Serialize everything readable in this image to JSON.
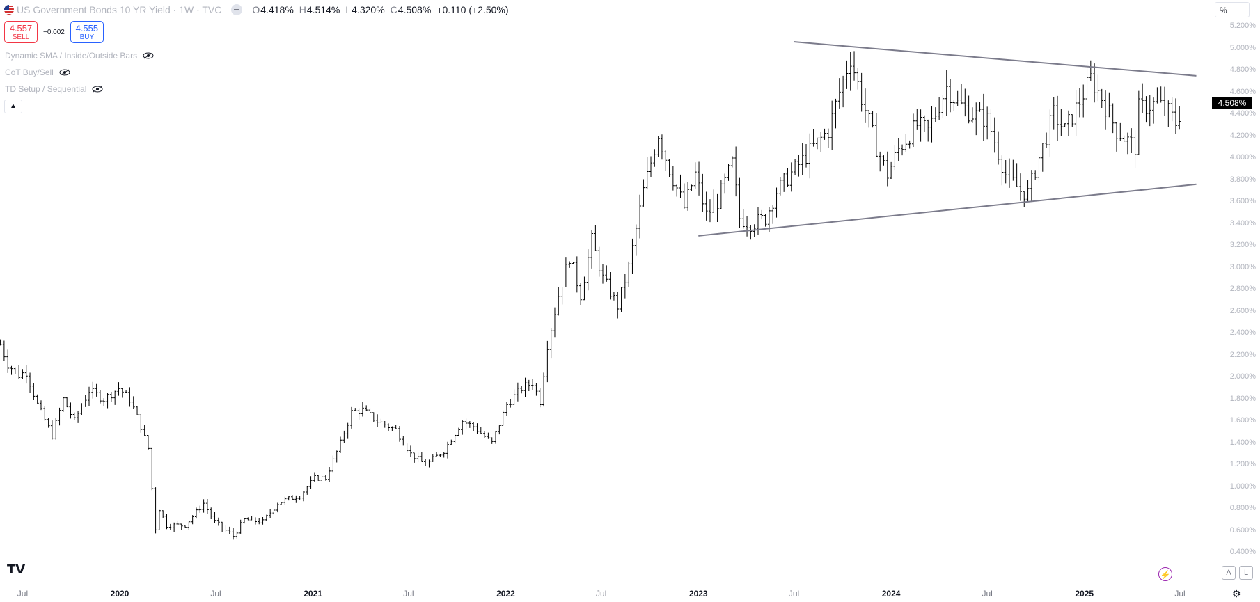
{
  "header": {
    "title": "US Government Bonds 10 YR Yield · 1W · TVC",
    "o_label": "O",
    "o_value": "4.418%",
    "h_label": "H",
    "h_value": "4.514%",
    "l_label": "L",
    "l_value": "4.320%",
    "c_label": "C",
    "c_value": "4.508%",
    "change": "+0.110 (+2.50%)"
  },
  "trade": {
    "sell_price": "4.557",
    "sell_label": "SELL",
    "spread": "−0.002",
    "buy_price": "4.555",
    "buy_label": "BUY"
  },
  "indicators": [
    {
      "label": "Dynamic SMA / Inside/Outside Bars"
    },
    {
      "label": "CoT Buy/Sell"
    },
    {
      "label": "TD Setup / Sequential"
    }
  ],
  "collapse_icon": "chevron-up-icon",
  "axis_unit": "%",
  "last_price_tag": "4.508%",
  "colors": {
    "bars": "#000000",
    "trendline": "#7b7b8b",
    "sell": "#f23645",
    "buy": "#2962ff"
  },
  "chart_data": {
    "type": "ohlc",
    "title": "US Government Bonds 10 YR Yield",
    "ylim": [
      0.3,
      5.3
    ],
    "y_ticks": [
      "0.400%",
      "0.600%",
      "0.800%",
      "1.000%",
      "1.200%",
      "1.400%",
      "1.600%",
      "1.800%",
      "2.000%",
      "2.200%",
      "2.400%",
      "2.600%",
      "2.800%",
      "3.000%",
      "3.200%",
      "3.400%",
      "3.600%",
      "3.800%",
      "4.000%",
      "4.200%",
      "4.400%",
      "4.600%",
      "4.800%",
      "5.000%",
      "5.200%"
    ],
    "x_labels": [
      {
        "label": "Jul",
        "date": "2019-07-01",
        "year": false
      },
      {
        "label": "2020",
        "date": "2020-01-01",
        "year": true
      },
      {
        "label": "Jul",
        "date": "2020-07-01",
        "year": false
      },
      {
        "label": "2021",
        "date": "2021-01-01",
        "year": true
      },
      {
        "label": "Jul",
        "date": "2021-07-01",
        "year": false
      },
      {
        "label": "2022",
        "date": "2022-01-01",
        "year": true
      },
      {
        "label": "Jul",
        "date": "2022-07-01",
        "year": false
      },
      {
        "label": "2023",
        "date": "2023-01-01",
        "year": true
      },
      {
        "label": "Jul",
        "date": "2023-07-01",
        "year": false
      },
      {
        "label": "2024",
        "date": "2024-01-01",
        "year": true
      },
      {
        "label": "Jul",
        "date": "2024-07-01",
        "year": false
      },
      {
        "label": "2025",
        "date": "2025-01-01",
        "year": true
      },
      {
        "label": "Jul",
        "date": "2025-07-01",
        "year": false
      }
    ],
    "price_path": [
      [
        "2019-05-20",
        2.3
      ],
      [
        "2019-06-03",
        2.12
      ],
      [
        "2019-06-24",
        2.02
      ],
      [
        "2019-07-08",
        2.05
      ],
      [
        "2019-07-29",
        1.75
      ],
      [
        "2019-08-26",
        1.47
      ],
      [
        "2019-09-16",
        1.8
      ],
      [
        "2019-10-07",
        1.6
      ],
      [
        "2019-11-04",
        1.88
      ],
      [
        "2019-12-02",
        1.8
      ],
      [
        "2019-12-30",
        1.9
      ],
      [
        "2020-01-20",
        1.8
      ],
      [
        "2020-02-10",
        1.55
      ],
      [
        "2020-02-24",
        1.35
      ],
      [
        "2020-03-09",
        0.62
      ],
      [
        "2020-03-16",
        0.8
      ],
      [
        "2020-03-30",
        0.65
      ],
      [
        "2020-05-04",
        0.65
      ],
      [
        "2020-06-08",
        0.85
      ],
      [
        "2020-06-29",
        0.68
      ],
      [
        "2020-08-03",
        0.55
      ],
      [
        "2020-08-24",
        0.7
      ],
      [
        "2020-09-28",
        0.68
      ],
      [
        "2020-10-26",
        0.85
      ],
      [
        "2020-11-09",
        0.88
      ],
      [
        "2020-12-07",
        0.92
      ],
      [
        "2021-01-04",
        1.08
      ],
      [
        "2021-01-25",
        1.08
      ],
      [
        "2021-02-22",
        1.4
      ],
      [
        "2021-03-15",
        1.68
      ],
      [
        "2021-04-05",
        1.7
      ],
      [
        "2021-05-03",
        1.6
      ],
      [
        "2021-06-07",
        1.52
      ],
      [
        "2021-07-05",
        1.3
      ],
      [
        "2021-08-02",
        1.2
      ],
      [
        "2021-09-06",
        1.33
      ],
      [
        "2021-10-11",
        1.6
      ],
      [
        "2021-11-01",
        1.55
      ],
      [
        "2021-12-06",
        1.4
      ],
      [
        "2022-01-03",
        1.75
      ],
      [
        "2022-01-31",
        1.9
      ],
      [
        "2022-02-21",
        1.95
      ],
      [
        "2022-03-07",
        1.78
      ],
      [
        "2022-03-21",
        2.3
      ],
      [
        "2022-04-11",
        2.75
      ],
      [
        "2022-05-02",
        3.1
      ],
      [
        "2022-05-23",
        2.75
      ],
      [
        "2022-06-13",
        3.25
      ],
      [
        "2022-07-04",
        2.9
      ],
      [
        "2022-08-01",
        2.65
      ],
      [
        "2022-08-22",
        3.0
      ],
      [
        "2022-09-19",
        3.7
      ],
      [
        "2022-10-17",
        4.22
      ],
      [
        "2022-11-07",
        3.9
      ],
      [
        "2022-12-05",
        3.55
      ],
      [
        "2022-12-26",
        3.85
      ],
      [
        "2023-01-16",
        3.48
      ],
      [
        "2023-02-06",
        3.6
      ],
      [
        "2023-03-06",
        3.95
      ],
      [
        "2023-03-20",
        3.45
      ],
      [
        "2023-04-10",
        3.4
      ],
      [
        "2023-05-08",
        3.45
      ],
      [
        "2023-05-29",
        3.7
      ],
      [
        "2023-07-03",
        3.9
      ],
      [
        "2023-08-07",
        4.1
      ],
      [
        "2023-09-04",
        4.25
      ],
      [
        "2023-09-25",
        4.6
      ],
      [
        "2023-10-16",
        4.92
      ],
      [
        "2023-11-06",
        4.55
      ],
      [
        "2023-12-04",
        4.1
      ],
      [
        "2023-12-25",
        3.85
      ],
      [
        "2024-01-15",
        4.08
      ],
      [
        "2024-02-19",
        4.3
      ],
      [
        "2024-03-11",
        4.25
      ],
      [
        "2024-04-15",
        4.65
      ],
      [
        "2024-05-06",
        4.5
      ],
      [
        "2024-06-03",
        4.4
      ],
      [
        "2024-07-01",
        4.35
      ],
      [
        "2024-08-05",
        3.85
      ],
      [
        "2024-09-02",
        3.7
      ],
      [
        "2024-09-16",
        3.68
      ],
      [
        "2024-10-07",
        4.0
      ],
      [
        "2024-11-04",
        4.4
      ],
      [
        "2024-11-25",
        4.25
      ],
      [
        "2025-01-13",
        4.72
      ],
      [
        "2025-02-03",
        4.55
      ],
      [
        "2025-03-03",
        4.25
      ],
      [
        "2025-04-07",
        4.1
      ],
      [
        "2025-04-14",
        4.45
      ],
      [
        "2025-05-19",
        4.5
      ],
      [
        "2025-06-02",
        4.45
      ],
      [
        "2025-06-09",
        4.42
      ],
      [
        "2025-06-23",
        4.32
      ],
      [
        "2025-06-30",
        4.4
      ]
    ],
    "trendlines": [
      {
        "name": "upper",
        "from": [
          "2023-07-01",
          5.06
        ],
        "to": [
          "2025-08-01",
          4.75
        ]
      },
      {
        "name": "lower",
        "from": [
          "2023-01-01",
          3.29
        ],
        "to": [
          "2025-08-01",
          3.76
        ]
      }
    ]
  }
}
